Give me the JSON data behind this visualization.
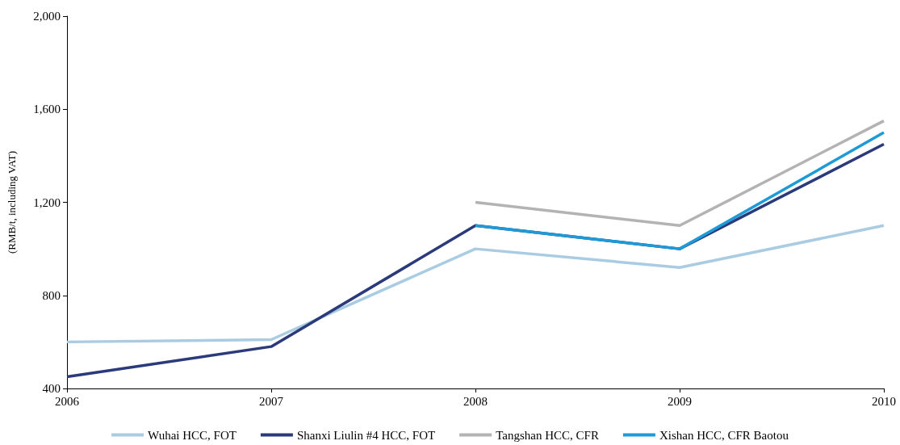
{
  "chart_data": {
    "type": "line",
    "ylabel": "(RMB/t, including VAT)",
    "x": [
      2006,
      2007,
      2008,
      2009,
      2010
    ],
    "xlim": [
      2006,
      2010
    ],
    "xticks": [
      2006,
      2007,
      2008,
      2009,
      2010
    ],
    "ylim": [
      400,
      2000
    ],
    "yticks": [
      {
        "value": 400,
        "label": "400"
      },
      {
        "value": 800,
        "label": "800"
      },
      {
        "value": 1200,
        "label": "1,200"
      },
      {
        "value": 1600,
        "label": "1,600"
      },
      {
        "value": 2000,
        "label": "2,000"
      }
    ],
    "grid": false,
    "legend": "bottom",
    "marker": "none",
    "line_style": "solid",
    "series": [
      {
        "name": "Wuhai HCC, FOT",
        "color": "#a9cce3",
        "values": [
          600,
          610,
          1000,
          920,
          1100
        ]
      },
      {
        "name": "Shanxi Liulin #4 HCC, FOT",
        "color": "#2b3a7a",
        "values": [
          450,
          580,
          1100,
          1000,
          1450
        ]
      },
      {
        "name": "Tangshan HCC, CFR",
        "color": "#b3b3b3",
        "values": [
          null,
          null,
          1200,
          1100,
          1550
        ]
      },
      {
        "name": "Xishan HCC, CFR Baotou",
        "color": "#1e9ad6",
        "values": [
          null,
          null,
          1100,
          1000,
          1500
        ]
      }
    ]
  }
}
